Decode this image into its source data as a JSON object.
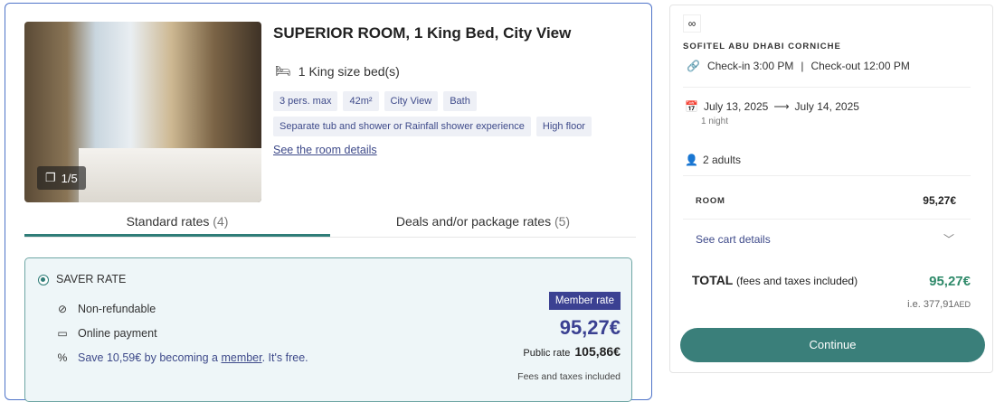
{
  "room": {
    "title": "SUPERIOR ROOM, 1 King Bed, City View",
    "photo_counter": "1/5",
    "beds": "1 King size bed(s)",
    "tags": [
      "3 pers. max",
      "42m²",
      "City View",
      "Bath",
      "Separate tub and shower or Rainfall shower experience",
      "High floor"
    ],
    "details_link": "See the room details"
  },
  "tabs": [
    {
      "label": "Standard rates",
      "count": "(4)",
      "active": true
    },
    {
      "label": "Deals and/or package rates",
      "count": "(5)",
      "active": false
    }
  ],
  "rate": {
    "name": "SAVER RATE",
    "selected": true,
    "features": [
      "Non-refundable",
      "Online payment"
    ],
    "save_pre": "Save 10,59€ by becoming a ",
    "save_link": "member",
    "save_post": ". It's free.",
    "badge": "Member rate",
    "price": "95,27€",
    "public_label": "Public rate",
    "public_price": "105,86€",
    "fees": "Fees and taxes included"
  },
  "summary": {
    "hotel": "SOFITEL ABU DHABI CORNICHE",
    "checkin": "Check-in 3:00 PM",
    "divider": "|",
    "checkout": "Check-out 12:00 PM",
    "date_from": "July 13, 2025",
    "date_to": "July 14, 2025",
    "nights": "1 night",
    "guests": "2 adults",
    "room_label": "ROOM",
    "room_price": "95,27€",
    "cart_link": "See cart details",
    "total_label": "TOTAL",
    "total_note": "(fees and taxes included)",
    "total_price": "95,27€",
    "converted_prefix": "i.e. ",
    "converted": "377,91",
    "currency": "AED",
    "continue": "Continue"
  },
  "colors": {
    "accent": "#3a7f7a",
    "brand_blue": "#3b4192",
    "total_green": "#2f8a6a"
  }
}
